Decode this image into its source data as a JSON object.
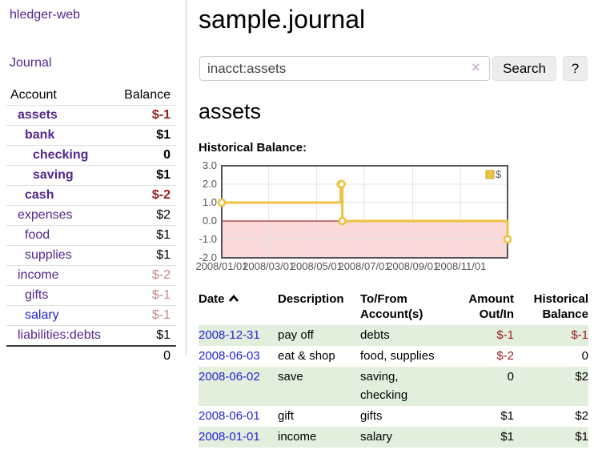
{
  "sidebar": {
    "app_link": "hledger-web",
    "journal_link": "Journal",
    "accounts_table": {
      "account_header": "Account",
      "balance_header": "Balance",
      "rows": [
        {
          "name": "assets",
          "balance": "$-1"
        },
        {
          "name": "bank",
          "balance": "$1"
        },
        {
          "name": "checking",
          "balance": "0"
        },
        {
          "name": "saving",
          "balance": "$1"
        },
        {
          "name": "cash",
          "balance": "$-2"
        },
        {
          "name": "expenses",
          "balance": "$2"
        },
        {
          "name": "food",
          "balance": "$1"
        },
        {
          "name": "supplies",
          "balance": "$1"
        },
        {
          "name": "income",
          "balance": "$-2"
        },
        {
          "name": "gifts",
          "balance": "$-1"
        },
        {
          "name": "salary",
          "balance": "$-1"
        },
        {
          "name": "liabilities:debts",
          "balance": "$1"
        }
      ],
      "total": "0"
    }
  },
  "header": {
    "title": "sample.journal"
  },
  "search": {
    "query": "inacct:assets",
    "clear_icon": "×",
    "button_label": "Search",
    "help_button_label": "?"
  },
  "account_page": {
    "heading": "assets"
  },
  "chart_data": {
    "type": "line",
    "title": "Historical Balance:",
    "legend": {
      "label": "$",
      "position": "top-right"
    },
    "xlim": [
      0,
      365
    ],
    "ylim": [
      -2,
      3
    ],
    "grid": true,
    "series": [
      {
        "name": "$",
        "steps": true,
        "color": "#edc240",
        "points": [
          {
            "date": "2008-01-01",
            "x_day": 0,
            "y": 1
          },
          {
            "date": "2008-06-01",
            "x_day": 152,
            "y": 2
          },
          {
            "date": "2008-06-02",
            "x_day": 153,
            "y": 2
          },
          {
            "date": "2008-06-03",
            "x_day": 154,
            "y": 0
          },
          {
            "date": "2008-12-31",
            "x_day": 365,
            "y": -1
          }
        ]
      }
    ],
    "yticks": [
      {
        "v": 3,
        "label": "3.0"
      },
      {
        "v": 2,
        "label": "2.0"
      },
      {
        "v": 1,
        "label": "1.0"
      },
      {
        "v": 0,
        "label": "0.0"
      },
      {
        "v": -1,
        "label": "-1.0"
      },
      {
        "v": -2,
        "label": "-2.0"
      }
    ],
    "xticks": [
      {
        "v": 0,
        "label": "2008/01/01"
      },
      {
        "v": 60,
        "label": "2008/03/01"
      },
      {
        "v": 121,
        "label": "2008/05/01"
      },
      {
        "v": 182,
        "label": "2008/07/01"
      },
      {
        "v": 244,
        "label": "2008/09/01"
      },
      {
        "v": 305,
        "label": "2008/11/01"
      }
    ],
    "colors": {
      "line": "#edc240",
      "marker_fill": "#ffffff",
      "legend_box_border": "#c9a42c",
      "negative_fill": "#f9d9d9",
      "zero_line": "#8b0000",
      "border": "#545454",
      "gridline": "#e3e3e3",
      "tick_text": "#545454"
    }
  },
  "transactions": {
    "headers": {
      "date": "Date",
      "sort_icon": "chevron-up",
      "description": "Description",
      "tofrom": "To/From Account(s)",
      "amount": "Amount Out/In",
      "balance": "Historical Balance"
    },
    "rows": [
      {
        "date": "2008-12-31",
        "description": "pay off",
        "accounts": "debts",
        "amount": "$-1",
        "balance": "$-1"
      },
      {
        "date": "2008-06-03",
        "description": "eat & shop",
        "accounts": "food, supplies",
        "amount": "$-2",
        "balance": "0"
      },
      {
        "date": "2008-06-02",
        "description": "save",
        "accounts": "saving, checking",
        "amount": "0",
        "balance": "$2"
      },
      {
        "date": "2008-06-01",
        "description": "gift",
        "accounts": "gifts",
        "amount": "$1",
        "balance": "$2"
      },
      {
        "date": "2008-01-01",
        "description": "income",
        "accounts": "salary",
        "amount": "$1",
        "balance": "$1"
      }
    ]
  }
}
